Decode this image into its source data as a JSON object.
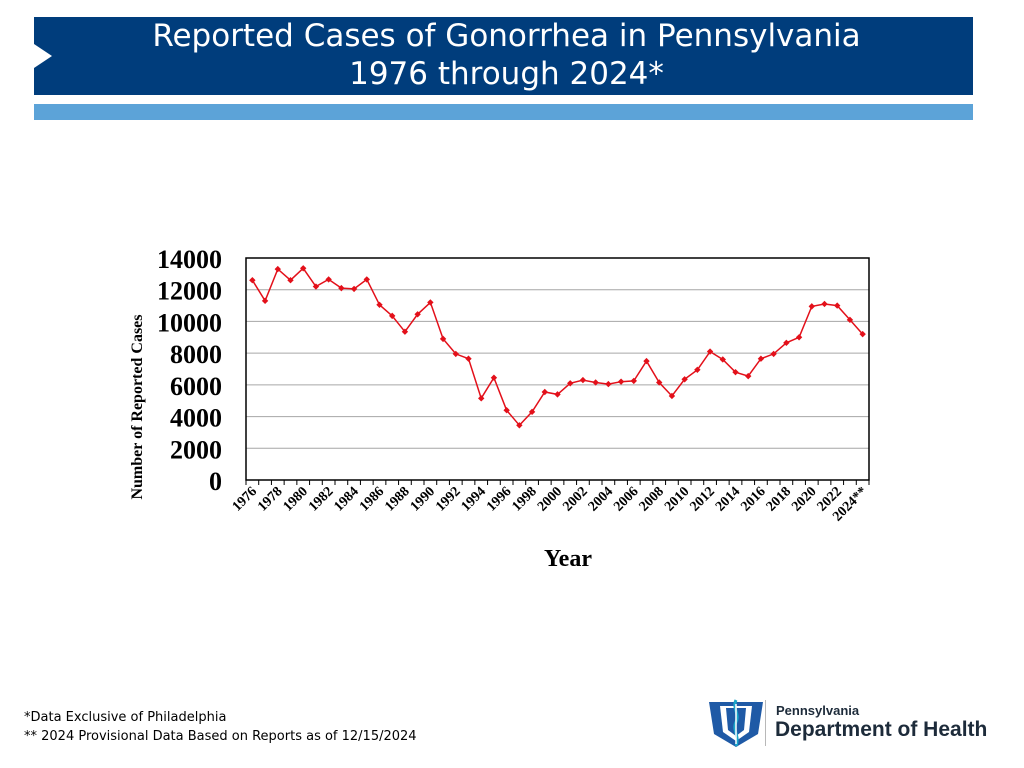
{
  "header": {
    "title_line1": "Reported Cases of Gonorrhea in Pennsylvania",
    "title_line2": "1976 through 2024*"
  },
  "colors": {
    "header_bg": "#003d7c",
    "stripe": "#5ca3d8",
    "series": "#e3101a",
    "gridline": "#a6a6a6"
  },
  "chart_data": {
    "type": "line",
    "xlabel": "Year",
    "ylabel": "Number of Reported Cases",
    "ylim": [
      0,
      14000
    ],
    "yticks": [
      0,
      2000,
      4000,
      6000,
      8000,
      10000,
      12000,
      14000
    ],
    "grid": true,
    "legend": "none",
    "x": [
      "1976",
      "1977",
      "1978",
      "1979",
      "1980",
      "1981",
      "1982",
      "1983",
      "1984",
      "1985",
      "1986",
      "1987",
      "1988",
      "1989",
      "1990",
      "1991",
      "1992",
      "1993",
      "1994",
      "1995",
      "1996",
      "1997",
      "1998",
      "1999",
      "2000",
      "2001",
      "2002",
      "2003",
      "2004",
      "2005",
      "2006",
      "2007",
      "2008",
      "2009",
      "2010",
      "2011",
      "2012",
      "2013",
      "2014",
      "2015",
      "2016",
      "2017",
      "2018",
      "2019",
      "2020",
      "2021",
      "2022",
      "2023",
      "2024**"
    ],
    "x_tick_labels": [
      "1976",
      "1978",
      "1980",
      "1982",
      "1984",
      "1986",
      "1988",
      "1990",
      "1992",
      "1994",
      "1996",
      "1998",
      "2000",
      "2002",
      "2004",
      "2006",
      "2008",
      "2010",
      "2012",
      "2014",
      "2016",
      "2018",
      "2020",
      "2022",
      "2024**"
    ],
    "series": [
      {
        "values": [
          12600,
          11300,
          13300,
          12600,
          13350,
          12200,
          12650,
          12100,
          12050,
          12650,
          11050,
          10350,
          9350,
          10450,
          11200,
          8900,
          7950,
          7650,
          5150,
          6450,
          4400,
          3450,
          4300,
          5550,
          5400,
          6100,
          6300,
          6150,
          6050,
          6200,
          6250,
          7500,
          6150,
          5300,
          6350,
          6950,
          8100,
          7600,
          6800,
          6550,
          7650,
          7950,
          8650,
          9000,
          10950,
          11100,
          11000,
          10100,
          9200
        ]
      }
    ]
  },
  "footnotes": {
    "line1": "*Data Exclusive of Philadelphia",
    "line2": "** 2024 Provisional Data Based on Reports as of 12/15/2024"
  },
  "logo": {
    "small": "Pennsylvania",
    "big": "Department of Health",
    "icon": "keystone-logo-icon"
  }
}
